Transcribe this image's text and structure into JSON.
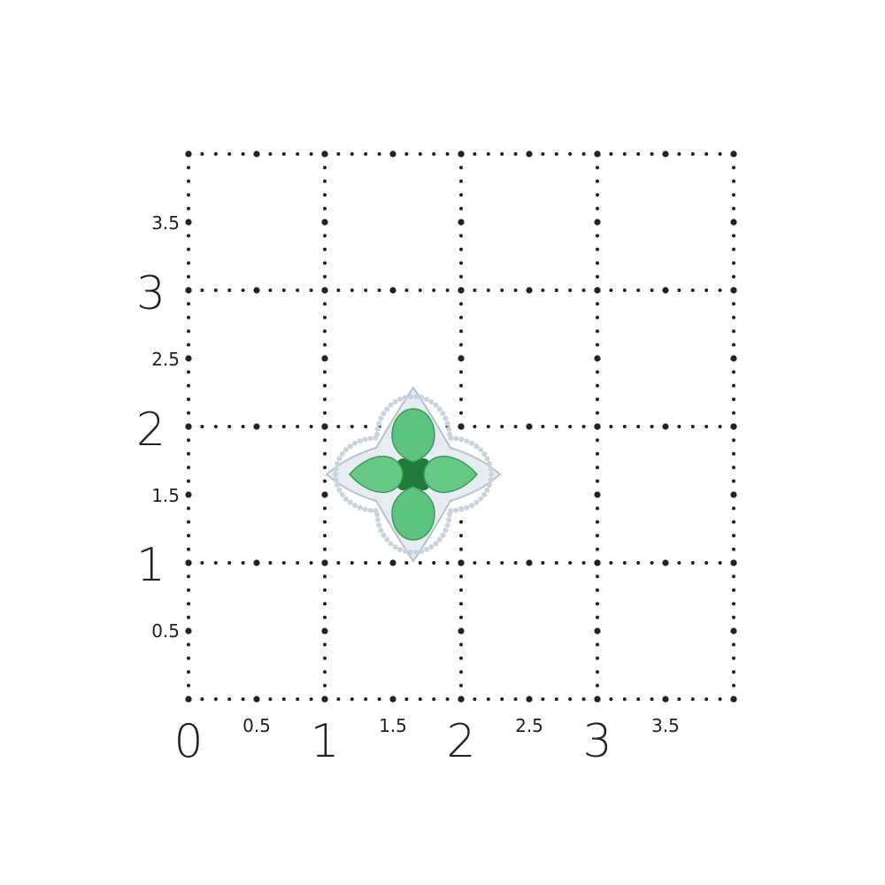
{
  "grid": {
    "units": 4,
    "x_labels_major": [
      "0",
      "1",
      "2",
      "3"
    ],
    "x_labels_minor": [
      "0.5",
      "1.5",
      "2.5",
      "3.5"
    ],
    "y_labels_major": [
      "1",
      "2",
      "3"
    ],
    "y_labels_minor": [
      "0.5",
      "1.5",
      "2.5",
      "3.5"
    ],
    "dot_color": "#222222"
  },
  "product": {
    "name_icon": "emerald-diamond-flower-pendant",
    "gem_color": "#5cc47e",
    "center_stone_color": "#1f7a3c",
    "halo_color": "#e6ecf2"
  }
}
